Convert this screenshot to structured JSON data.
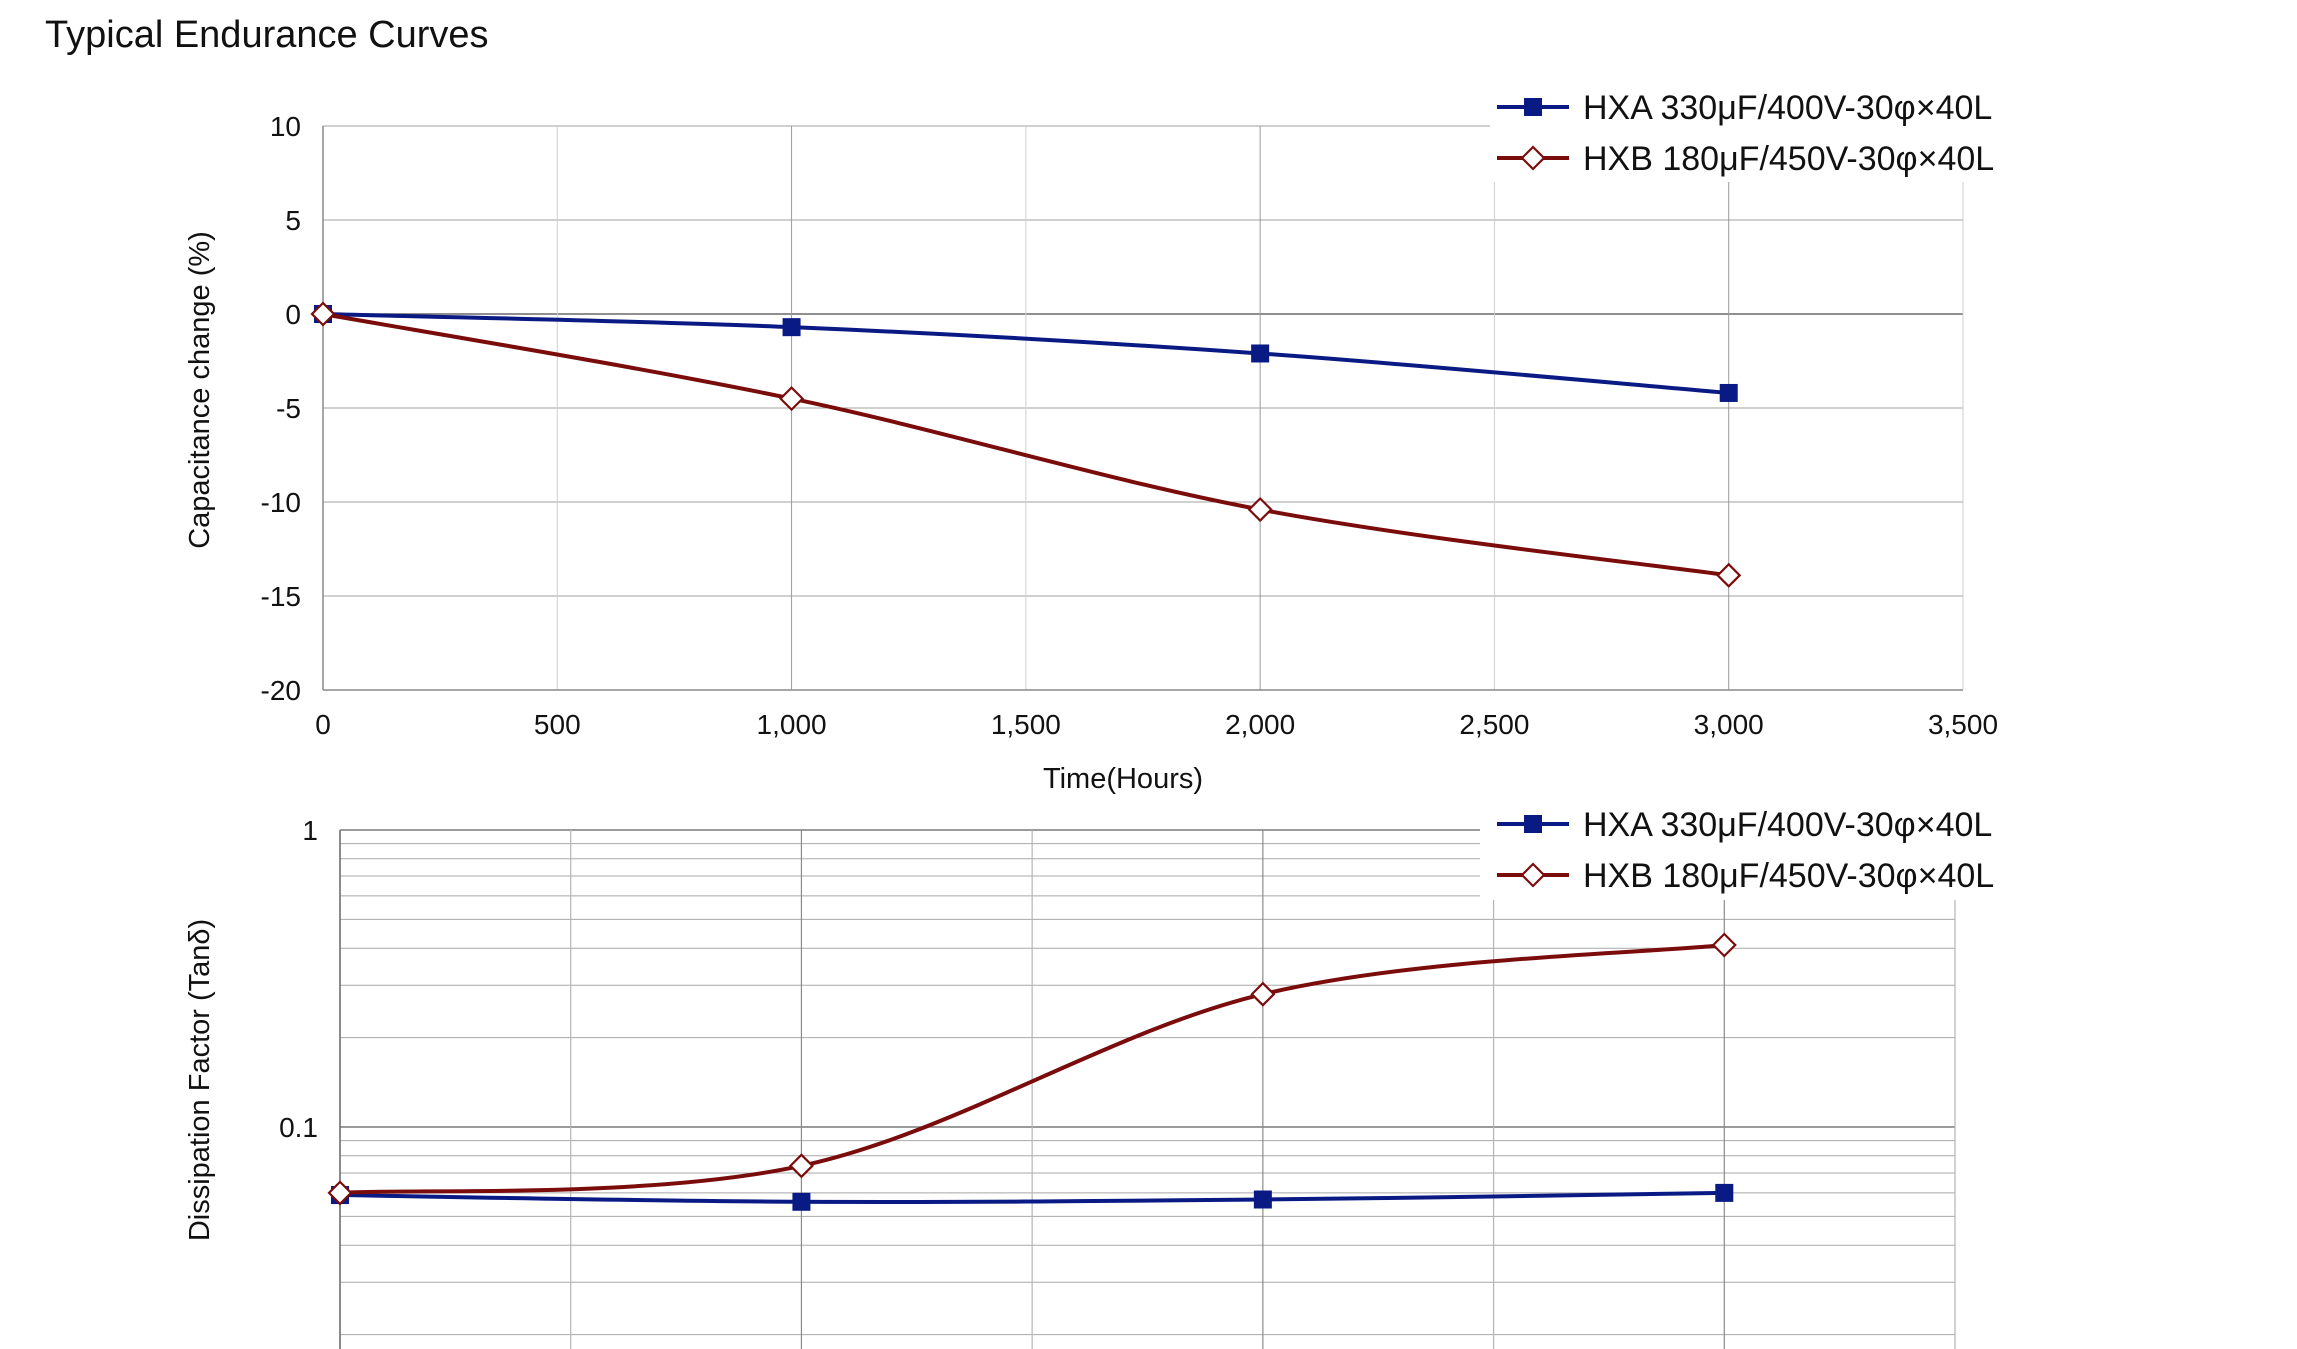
{
  "title": "Typical Endurance Curves",
  "colors": {
    "HXA": "#0a1a84",
    "HXB": "#7b0c0c",
    "grid": "#c8c8c8",
    "axis": "#999999"
  },
  "chart_data": [
    {
      "type": "line",
      "title": "",
      "xlabel": "Time(Hours)",
      "ylabel": "Capacitance change (%)",
      "xlim": [
        0,
        3500
      ],
      "ylim": [
        -20,
        10
      ],
      "x_ticks": [
        0,
        500,
        1000,
        1500,
        2000,
        2500,
        3000,
        3500
      ],
      "x_tick_labels": [
        "0",
        "500",
        "1,000",
        "1,500",
        "2,000",
        "2,500",
        "3,000",
        "3,500"
      ],
      "y_ticks": [
        10,
        5,
        0,
        -5,
        -10,
        -15,
        -20
      ],
      "y_tick_labels": [
        "10",
        "5",
        "0",
        "-5",
        "-10",
        "-15",
        "-20"
      ],
      "grid": true,
      "legend_position": "top-right",
      "series": [
        {
          "name": "HXA 330μF/400V-30φ×40L",
          "marker": "square",
          "color": "#0a1a84",
          "x": [
            0,
            1000,
            2000,
            3000
          ],
          "y": [
            0,
            -0.7,
            -2.1,
            -4.2
          ]
        },
        {
          "name": "HXB 180μF/450V-30φ×40L",
          "marker": "diamond-open",
          "color": "#7b0c0c",
          "x": [
            0,
            1000,
            2000,
            3000
          ],
          "y": [
            0,
            -4.5,
            -10.4,
            -13.9
          ]
        }
      ]
    },
    {
      "type": "line",
      "title": "",
      "xlabel": "",
      "ylabel": "Dissipation Factor (Tanδ)",
      "xlim": [
        0,
        3500
      ],
      "ylim": [
        0.02,
        1
      ],
      "y_scale": "log",
      "y_ticks": [
        1,
        0.1
      ],
      "y_tick_labels": [
        "1",
        "0.1"
      ],
      "grid": true,
      "legend_position": "top-right",
      "series": [
        {
          "name": "HXA 330μF/400V-30φ×40L",
          "marker": "square",
          "color": "#0a1a84",
          "x": [
            0,
            1000,
            2000,
            3000
          ],
          "y": [
            0.059,
            0.056,
            0.057,
            0.06
          ]
        },
        {
          "name": "HXB 180μF/450V-30φ×40L",
          "marker": "diamond-open",
          "color": "#7b0c0c",
          "x": [
            0,
            1000,
            2000,
            3000
          ],
          "y": [
            0.06,
            0.074,
            0.28,
            0.41
          ]
        }
      ]
    }
  ]
}
